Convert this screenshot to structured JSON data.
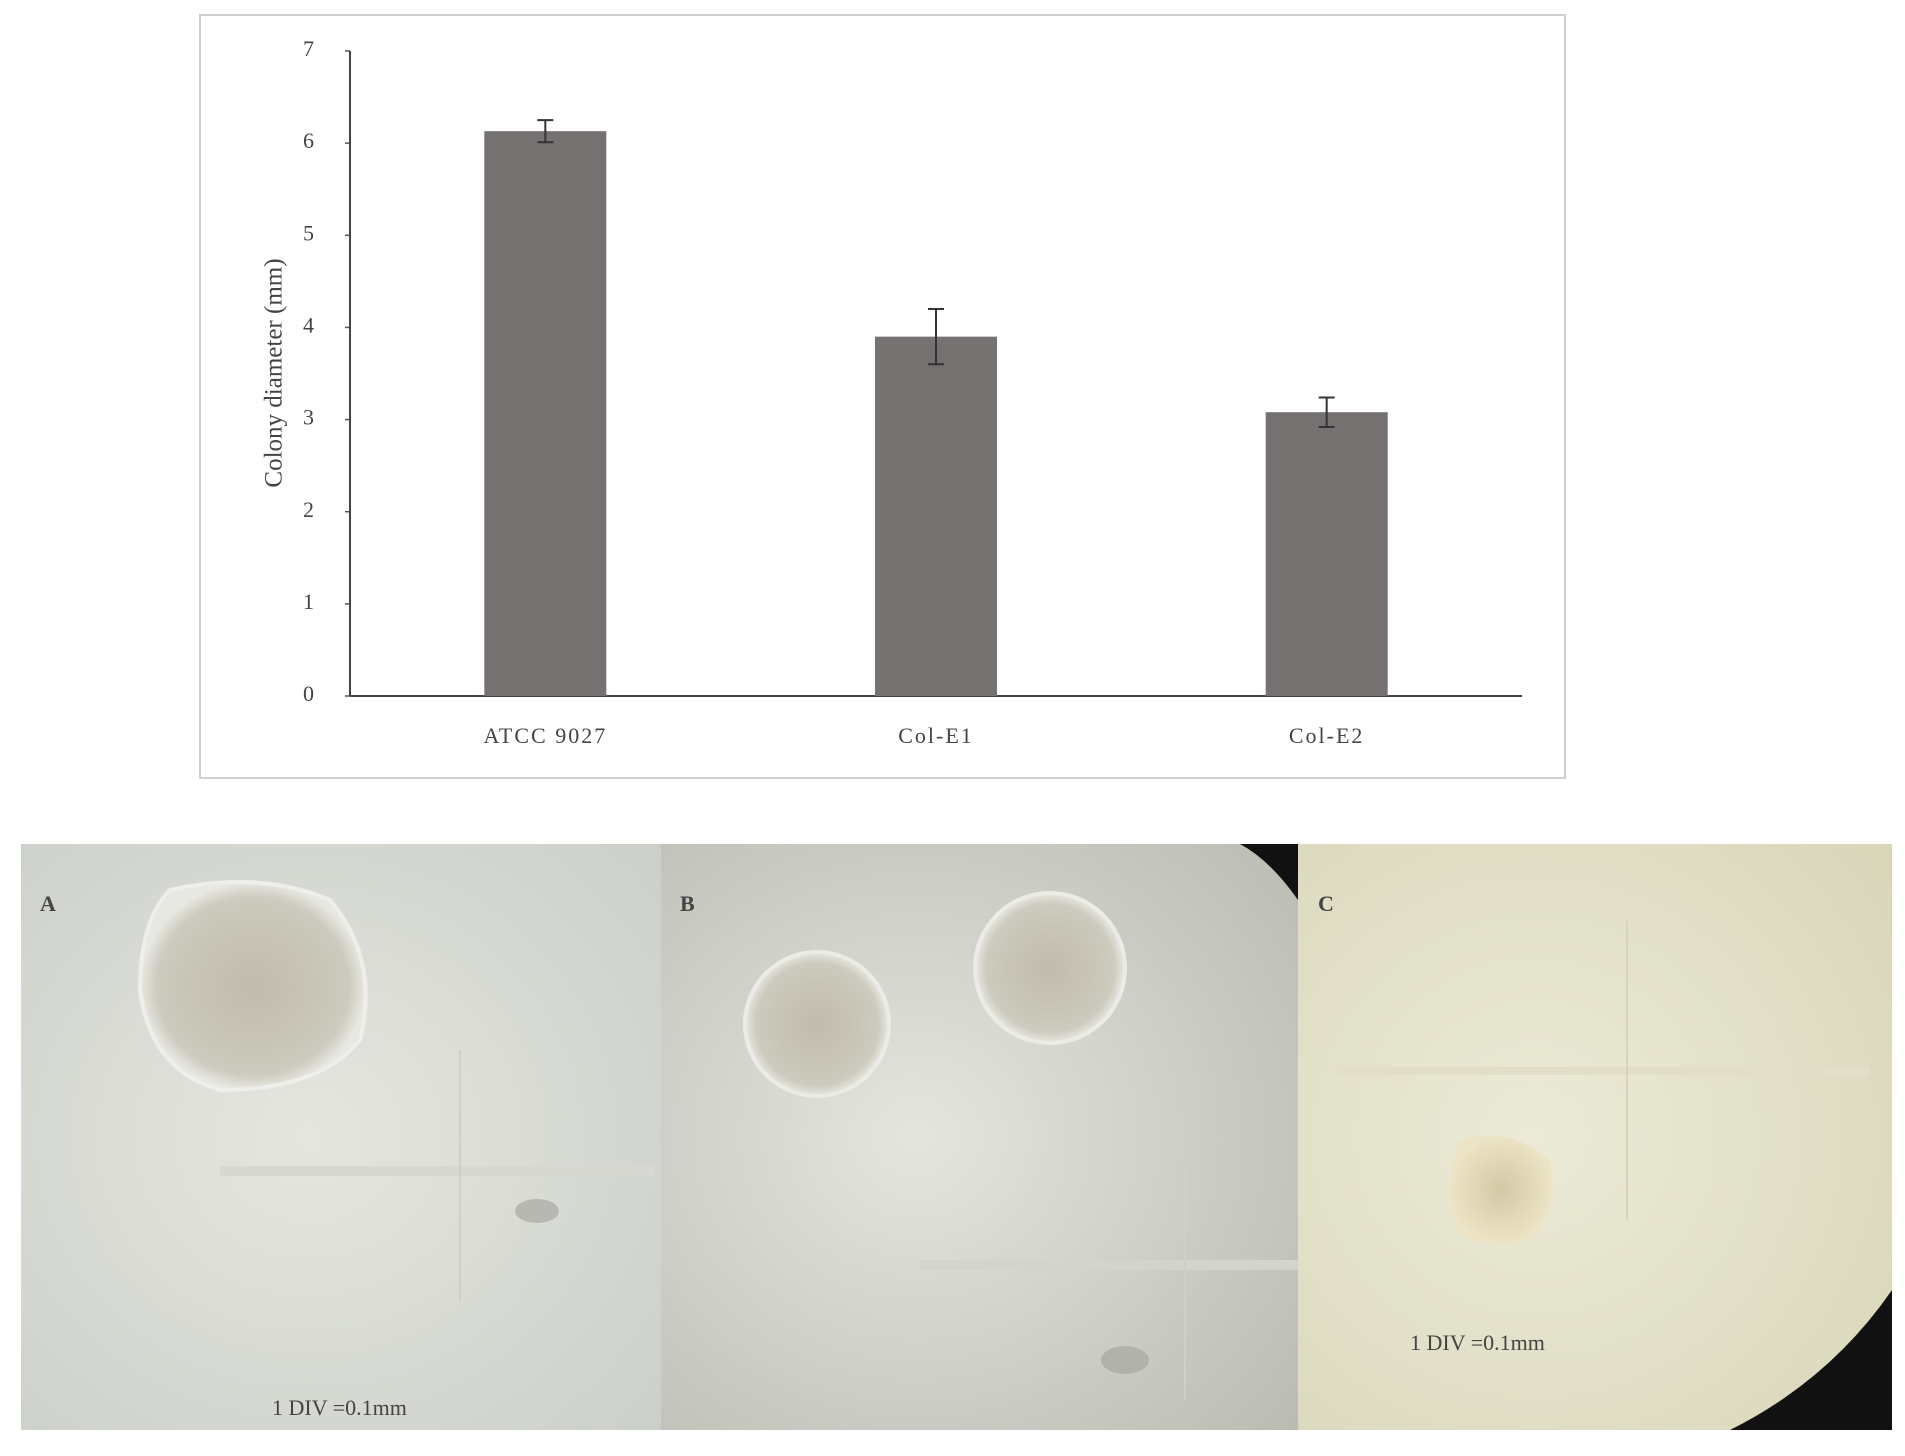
{
  "chart_data": {
    "type": "bar",
    "y_label": "Colony diameter (mm)",
    "categories": [
      "ATCC 9027",
      "Col-E1",
      "Col-E2"
    ],
    "values": [
      6.13,
      3.9,
      3.08
    ],
    "errors": [
      0.12,
      0.3,
      0.16
    ],
    "color": "#767171",
    "ylim": [
      0,
      7
    ],
    "yticks": [
      0,
      1,
      2,
      3,
      4,
      5,
      6,
      7
    ]
  },
  "panels": [
    {
      "label": "A"
    },
    {
      "label": "B",
      "scale_text": "1  DIV  =0.1mm"
    },
    {
      "label": "C",
      "scale_text": "1  DIV  =0.1mm"
    }
  ],
  "panel_a_scale_text": "1  DIV  =0.1mm"
}
